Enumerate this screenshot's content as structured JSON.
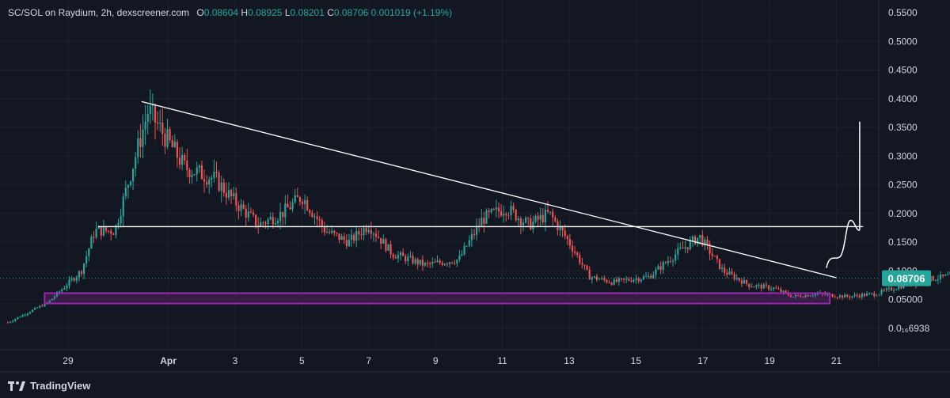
{
  "header": {
    "symbol": "SC/SOL on Raydium, 2h, dexscreener.com",
    "o_label": "O",
    "o_value": "0.08604",
    "h_label": "H",
    "h_value": "0.08925",
    "l_label": "L",
    "l_value": "0.08201",
    "c_label": "C",
    "c_value": "0.08706",
    "change": "0.001019 (+1.19%)"
  },
  "branding": {
    "label": "TradingView"
  },
  "colors": {
    "background": "#131722",
    "up": "#26a69a",
    "down": "#ef5350",
    "axis_text": "#d1d4dc",
    "zone": "#9c27b0",
    "price_label_bg": "#26a69a"
  },
  "chart_data": {
    "type": "candlestick",
    "y_ticks": [
      "0.5500",
      "0.5000",
      "0.4500",
      "0.4000",
      "0.3500",
      "0.3000",
      "0.2500",
      "0.2000",
      "0.1500",
      "0.1000",
      "0.05000",
      "0.0₁₆6938"
    ],
    "x_ticks": [
      "29",
      "Apr",
      "3",
      "5",
      "7",
      "9",
      "11",
      "13",
      "15",
      "17",
      "19",
      "21"
    ],
    "last_price": "0.08706",
    "ohlc_last": {
      "open": 0.08604,
      "high": 0.08925,
      "low": 0.08201,
      "close": 0.08706,
      "change": 0.001019,
      "change_pct": 1.19
    },
    "price_path": [
      [
        0,
        0.01
      ],
      [
        1.2,
        0.045
      ],
      [
        2.2,
        0.1
      ],
      [
        2.6,
        0.17
      ],
      [
        3.2,
        0.17
      ],
      [
        4.2,
        0.38
      ],
      [
        5.3,
        0.28
      ],
      [
        6.2,
        0.26
      ],
      [
        6.8,
        0.22
      ],
      [
        7.5,
        0.18
      ],
      [
        8.2,
        0.2
      ],
      [
        8.8,
        0.23
      ],
      [
        9.5,
        0.17
      ],
      [
        10.2,
        0.15
      ],
      [
        10.8,
        0.18
      ],
      [
        11.5,
        0.13
      ],
      [
        12.5,
        0.11
      ],
      [
        13.5,
        0.12
      ],
      [
        14.2,
        0.19
      ],
      [
        14.9,
        0.21
      ],
      [
        15.6,
        0.18
      ],
      [
        16.2,
        0.2
      ],
      [
        16.8,
        0.15
      ],
      [
        17.4,
        0.09
      ],
      [
        18.1,
        0.08
      ],
      [
        19.2,
        0.09
      ],
      [
        20.0,
        0.13
      ],
      [
        20.7,
        0.16
      ],
      [
        21.4,
        0.1
      ],
      [
        22.2,
        0.075
      ],
      [
        22.9,
        0.07
      ],
      [
        23.5,
        0.055
      ],
      [
        24.2,
        0.06
      ],
      [
        25.1,
        0.055
      ],
      [
        26.0,
        0.06
      ],
      [
        26.8,
        0.075
      ],
      [
        27.5,
        0.085
      ],
      [
        28.1,
        0.09
      ],
      [
        28.6,
        0.105
      ],
      [
        29.1,
        0.08
      ],
      [
        29.6,
        0.1
      ],
      [
        30.1,
        0.09
      ],
      [
        30.6,
        0.087
      ]
    ],
    "drawings": {
      "resistance_trendline": {
        "from": [
          "Mar 31",
          0.395
        ],
        "to": [
          "Apr 20",
          0.088
        ]
      },
      "horizontal_level": 0.177,
      "support_zone": [
        0.043,
        0.061
      ],
      "projected_path": [
        [
          "Apr 20",
          0.1
        ],
        [
          "Apr 21",
          0.19
        ],
        [
          "Apr 21",
          0.175
        ],
        [
          "Apr 22",
          0.36
        ]
      ]
    }
  }
}
